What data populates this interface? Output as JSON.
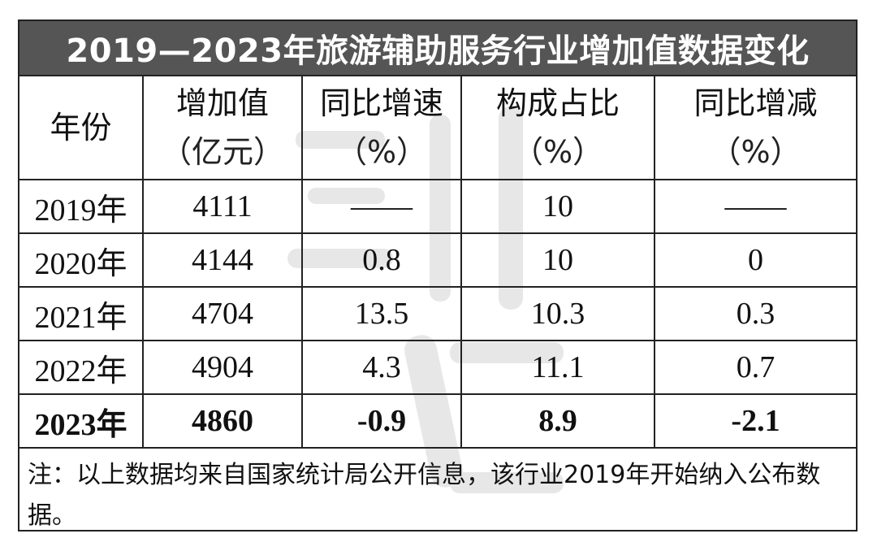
{
  "title": "2019—2023年旅游辅助服务行业增加值数据变化",
  "headers": [
    {
      "line1": "年份",
      "line2": ""
    },
    {
      "line1": "增加值",
      "line2": "（亿元）"
    },
    {
      "line1": "同比增速",
      "line2": "（%）"
    },
    {
      "line1": "构成占比",
      "line2": "（%）"
    },
    {
      "line1": "同比增减",
      "line2": "（%）"
    }
  ],
  "rows": [
    {
      "year": "2019年",
      "value": "4111",
      "growth": "——",
      "share": "10",
      "change": "——"
    },
    {
      "year": "2020年",
      "value": "4144",
      "growth": "0.8",
      "share": "10",
      "change": "0"
    },
    {
      "year": "2021年",
      "value": "4704",
      "growth": "13.5",
      "share": "10.3",
      "change": "0.3"
    },
    {
      "year": "2022年",
      "value": "4904",
      "growth": "4.3",
      "share": "11.1",
      "change": "0.7"
    },
    {
      "year": "2023年",
      "value": "4860",
      "growth": "-0.9",
      "share": "8.9",
      "change": "-2.1"
    }
  ],
  "note": "注：以上数据均来自国家统计局公开信息，该行业2019年开始纳入公布数据。"
}
